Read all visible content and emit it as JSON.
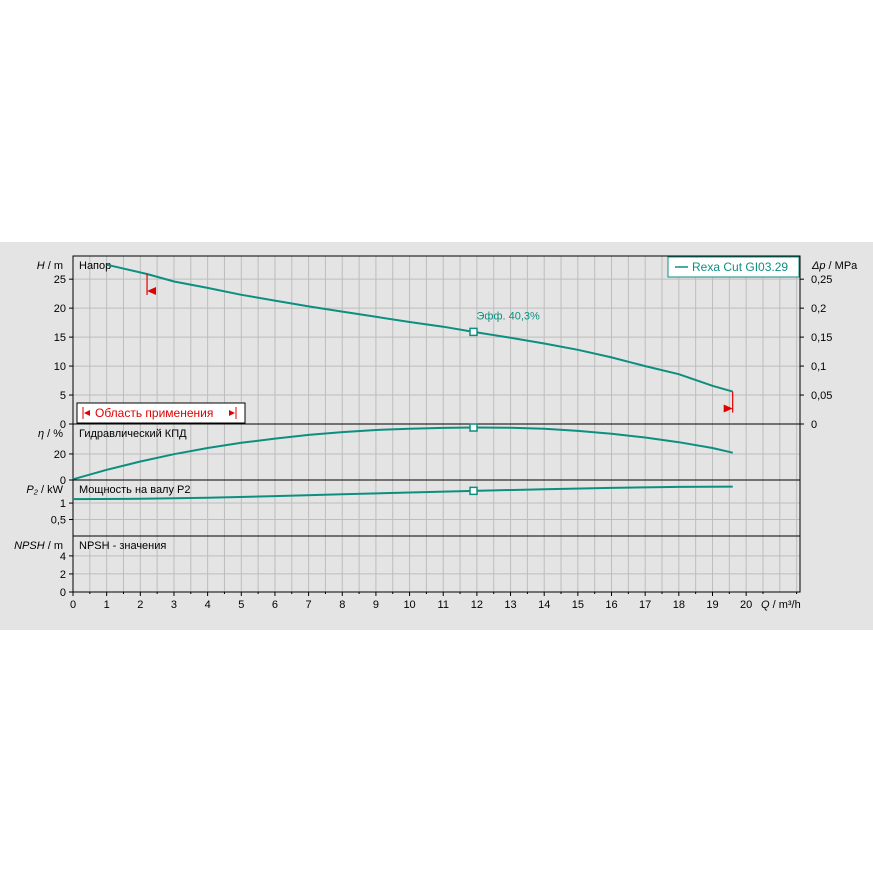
{
  "colors": {
    "curve": "#0d8f80",
    "application": "#e00000",
    "panel_bg": "#e4e4e4",
    "plot_bg": "#e4e4e4",
    "grid": "#bdbdbd"
  },
  "legend": {
    "label": "Rexa Cut GI03.29"
  },
  "operating_point": {
    "label": "Эфф.",
    "value": "40,3%",
    "q": 11.9
  },
  "application_range": {
    "label": "Область применения",
    "q_min": 2.2,
    "q_max": 19.6
  },
  "chart_data": {
    "type": "line",
    "x_axis": {
      "label": "Q",
      "unit": "m³/h",
      "range": [
        0,
        21.6
      ],
      "ticks": [
        "0",
        "1",
        "2",
        "3",
        "4",
        "5",
        "6",
        "7",
        "8",
        "9",
        "10",
        "11",
        "12",
        "13",
        "14",
        "15",
        "16",
        "17",
        "18",
        "19",
        "20"
      ]
    },
    "panels": [
      {
        "id": "head",
        "title": "Напор",
        "y_label": "H",
        "y_unit": "m",
        "y_range": [
          0,
          29
        ],
        "y_ticks": [
          "0",
          "5",
          "10",
          "15",
          "20",
          "25"
        ],
        "secondary_axis": {
          "label": "Δp",
          "unit": "MPa",
          "ticks": [
            "0",
            "0,05",
            "0,1",
            "0,15",
            "0,2",
            "0,25"
          ]
        },
        "series": [
          {
            "name": "Rexa Cut GI03.29",
            "x": [
              1.0,
              2.2,
              3.0,
              4.0,
              5.0,
              6.0,
              7.0,
              8.0,
              9.0,
              10.0,
              11.0,
              11.9,
              13.0,
              14.0,
              15.0,
              16.0,
              17.0,
              18.0,
              19.0,
              19.6
            ],
            "y": [
              27.5,
              25.9,
              24.6,
              23.5,
              22.3,
              21.3,
              20.3,
              19.4,
              18.5,
              17.6,
              16.8,
              15.9,
              14.9,
              13.9,
              12.8,
              11.5,
              10.0,
              8.6,
              6.6,
              5.6
            ]
          }
        ]
      },
      {
        "id": "efficiency",
        "title": "Гидравлический КПД",
        "y_label": "η",
        "y_unit": "%",
        "y_range": [
          0,
          43
        ],
        "y_ticks": [
          "0",
          "20"
        ],
        "series": [
          {
            "name": "Rexa Cut GI03.29",
            "x": [
              0.0,
              1.0,
              2.0,
              3.0,
              4.0,
              5.0,
              6.0,
              7.0,
              8.0,
              9.0,
              10.0,
              11.0,
              11.9,
              13.0,
              14.0,
              15.0,
              16.0,
              17.0,
              18.0,
              19.0,
              19.6
            ],
            "y": [
              0.5,
              7.8,
              14.2,
              19.8,
              24.6,
              28.6,
              31.8,
              34.6,
              36.8,
              38.4,
              39.4,
              40.0,
              40.3,
              40.1,
              39.3,
              37.7,
              35.5,
              32.6,
              29.0,
              24.6,
              21.0
            ]
          }
        ]
      },
      {
        "id": "power",
        "title": "Мощность на валу P2",
        "y_label": "P₂",
        "y_unit": "kW",
        "y_range": [
          0,
          1.7
        ],
        "y_ticks": [
          "0,5",
          "1"
        ],
        "series": [
          {
            "name": "Rexa Cut GI03.29",
            "x": [
              0.0,
              2.0,
              4.0,
              6.0,
              8.0,
              10.0,
              11.9,
              14.0,
              16.0,
              18.0,
              19.6
            ],
            "y": [
              1.12,
              1.13,
              1.16,
              1.21,
              1.27,
              1.32,
              1.37,
              1.42,
              1.46,
              1.49,
              1.5
            ]
          }
        ]
      },
      {
        "id": "npsh",
        "title": "NPSH - значения",
        "y_label": "NPSH",
        "y_unit": "m",
        "y_range": [
          0,
          6.2
        ],
        "y_ticks": [
          "0",
          "2",
          "4"
        ],
        "series": []
      }
    ]
  }
}
